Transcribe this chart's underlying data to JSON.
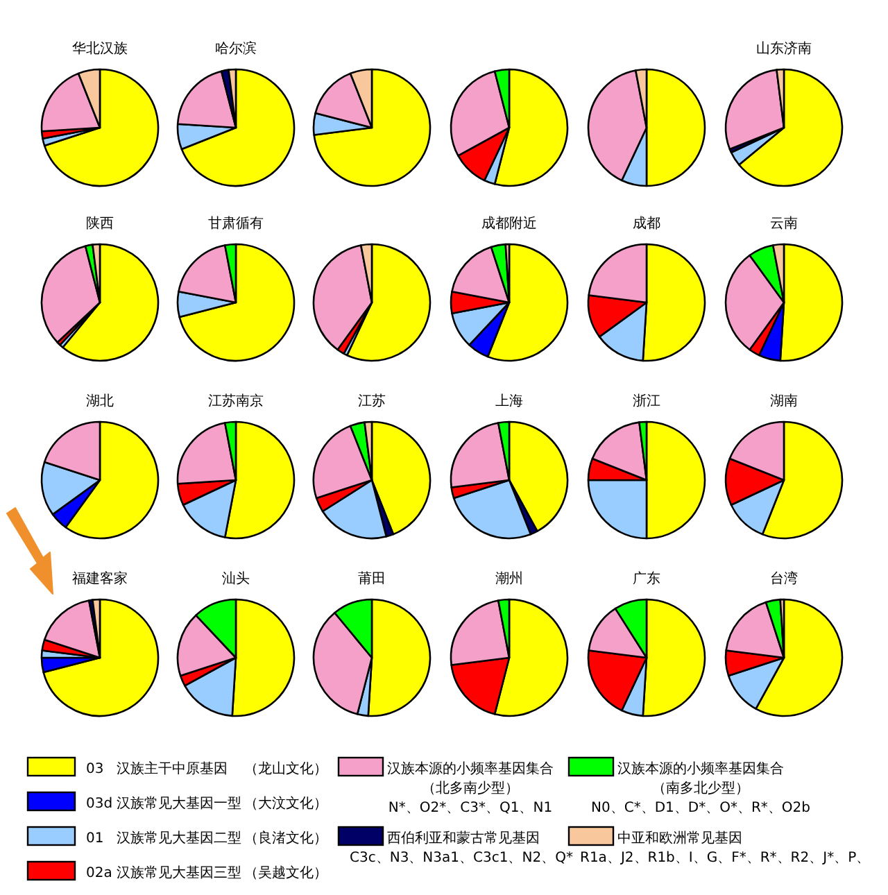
{
  "chart_data": [
    {
      "type": "pie",
      "title": "华北汉族",
      "categories": [
        null,
        null,
        null,
        null,
        null
      ],
      "values": [
        70,
        2,
        2,
        20,
        6
      ],
      "colors": [
        "#ffff00",
        "#99ccff",
        "#ff0000",
        "#f4a0c8",
        "#f8c89c"
      ]
    },
    {
      "type": "pie",
      "title": "哈尔滨",
      "categories": [
        null,
        null,
        null,
        null,
        null
      ],
      "values": [
        69,
        7,
        20,
        2,
        2
      ],
      "colors": [
        "#ffff00",
        "#99ccff",
        "#f4a0c8",
        "#000066",
        "#f8c89c"
      ]
    },
    {
      "type": "pie",
      "categories": [
        null,
        null,
        null,
        null
      ],
      "values": [
        73,
        6,
        15,
        6
      ],
      "colors": [
        "#ffff00",
        "#99ccff",
        "#f4a0c8",
        "#f8c89c"
      ]
    },
    {
      "type": "pie",
      "categories": [
        null,
        null,
        null,
        null,
        null
      ],
      "values": [
        54,
        3,
        10,
        29,
        4
      ],
      "colors": [
        "#ffff00",
        "#99ccff",
        "#ff0000",
        "#f4a0c8",
        "#00ff00"
      ]
    },
    {
      "type": "pie",
      "categories": [
        null,
        null,
        null,
        null
      ],
      "values": [
        50,
        7,
        40,
        3
      ],
      "colors": [
        "#ffff00",
        "#99ccff",
        "#f4a0c8",
        "#f8c89c"
      ]
    },
    {
      "type": "pie",
      "title": "山东济南",
      "categories": [
        null,
        null,
        null,
        null,
        null
      ],
      "values": [
        64,
        4,
        1,
        29,
        2
      ],
      "colors": [
        "#ffff00",
        "#99ccff",
        "#000066",
        "#f4a0c8",
        "#f8c89c"
      ]
    },
    {
      "type": "pie",
      "title": "陕西",
      "categories": [
        null,
        null,
        null,
        null,
        null,
        null
      ],
      "values": [
        61,
        1,
        1,
        33,
        2,
        2
      ],
      "colors": [
        "#ffff00",
        "#99ccff",
        "#ff0000",
        "#f4a0c8",
        "#00ff00",
        "#f8c89c"
      ]
    },
    {
      "type": "pie",
      "title": "甘肃循有",
      "categories": [
        null,
        null,
        null,
        null
      ],
      "values": [
        71,
        7,
        19,
        3
      ],
      "colors": [
        "#ffff00",
        "#99ccff",
        "#f4a0c8",
        "#00ff00"
      ]
    },
    {
      "type": "pie",
      "categories": [
        null,
        null,
        null,
        null,
        null
      ],
      "values": [
        57,
        1,
        2,
        37,
        3
      ],
      "colors": [
        "#ffff00",
        "#99ccff",
        "#ff0000",
        "#f4a0c8",
        "#f8c89c"
      ]
    },
    {
      "type": "pie",
      "title": "成都附近",
      "categories": [
        null,
        null,
        null,
        null,
        null,
        null,
        null
      ],
      "values": [
        56,
        6,
        10,
        6,
        17,
        4,
        1
      ],
      "colors": [
        "#ffff00",
        "#0000ff",
        "#99ccff",
        "#ff0000",
        "#f4a0c8",
        "#00ff00",
        "#f8c89c"
      ]
    },
    {
      "type": "pie",
      "title": "成都",
      "categories": [
        null,
        null,
        null,
        null
      ],
      "values": [
        51,
        14,
        12,
        23
      ],
      "colors": [
        "#ffff00",
        "#99ccff",
        "#ff0000",
        "#f4a0c8"
      ]
    },
    {
      "type": "pie",
      "title": "云南",
      "categories": [
        null,
        null,
        null,
        null,
        null,
        null
      ],
      "values": [
        51,
        6,
        3,
        30,
        7,
        3
      ],
      "colors": [
        "#ffff00",
        "#0000ff",
        "#ff0000",
        "#f4a0c8",
        "#00ff00",
        "#f8c89c"
      ]
    },
    {
      "type": "pie",
      "title": "湖北",
      "categories": [
        null,
        null,
        null,
        null
      ],
      "values": [
        60,
        5,
        15,
        20
      ],
      "colors": [
        "#ffff00",
        "#0000ff",
        "#99ccff",
        "#f4a0c8"
      ]
    },
    {
      "type": "pie",
      "title": "江苏南京",
      "categories": [
        null,
        null,
        null,
        null,
        null
      ],
      "values": [
        53,
        15,
        6,
        23,
        3
      ],
      "colors": [
        "#ffff00",
        "#99ccff",
        "#ff0000",
        "#f4a0c8",
        "#00ff00"
      ]
    },
    {
      "type": "pie",
      "title": "江苏",
      "categories": [
        null,
        null,
        null,
        null,
        null,
        null,
        null
      ],
      "values": [
        44,
        2,
        20,
        4,
        24,
        4,
        2
      ],
      "colors": [
        "#ffff00",
        "#000066",
        "#99ccff",
        "#ff0000",
        "#f4a0c8",
        "#00ff00",
        "#f8c89c"
      ]
    },
    {
      "type": "pie",
      "title": "上海",
      "categories": [
        null,
        null,
        null,
        null,
        null,
        null
      ],
      "values": [
        42,
        2,
        26,
        3,
        24,
        3
      ],
      "colors": [
        "#ffff00",
        "#000066",
        "#99ccff",
        "#ff0000",
        "#f4a0c8",
        "#00ff00"
      ]
    },
    {
      "type": "pie",
      "title": "浙江",
      "categories": [
        null,
        null,
        null,
        null,
        null
      ],
      "values": [
        50,
        25,
        6,
        17,
        2
      ],
      "colors": [
        "#ffff00",
        "#99ccff",
        "#ff0000",
        "#f4a0c8",
        "#00ff00"
      ]
    },
    {
      "type": "pie",
      "title": "湖南",
      "categories": [
        null,
        null,
        null,
        null
      ],
      "values": [
        56,
        12,
        13,
        19
      ],
      "colors": [
        "#ffff00",
        "#99ccff",
        "#ff0000",
        "#f4a0c8"
      ]
    },
    {
      "type": "pie",
      "title": "福建客家",
      "categories": [
        null,
        null,
        null,
        null,
        null,
        null,
        null
      ],
      "values": [
        71,
        4,
        2,
        3,
        17,
        1,
        2
      ],
      "colors": [
        "#ffff00",
        "#0000ff",
        "#99ccff",
        "#ff0000",
        "#f4a0c8",
        "#000066",
        "#f8c89c"
      ]
    },
    {
      "type": "pie",
      "title": "汕头",
      "categories": [
        null,
        null,
        null,
        null,
        null
      ],
      "values": [
        51,
        16,
        3,
        18,
        12
      ],
      "colors": [
        "#ffff00",
        "#99ccff",
        "#ff0000",
        "#f4a0c8",
        "#00ff00"
      ]
    },
    {
      "type": "pie",
      "title": "莆田",
      "categories": [
        null,
        null,
        null,
        null
      ],
      "values": [
        51,
        3,
        35,
        11
      ],
      "colors": [
        "#ffff00",
        "#99ccff",
        "#f4a0c8",
        "#00ff00"
      ]
    },
    {
      "type": "pie",
      "title": "潮州",
      "categories": [
        null,
        null,
        null,
        null
      ],
      "values": [
        54,
        19,
        24,
        3
      ],
      "colors": [
        "#ffff00",
        "#ff0000",
        "#f4a0c8",
        "#00ff00"
      ]
    },
    {
      "type": "pie",
      "title": "广东",
      "categories": [
        null,
        null,
        null,
        null,
        null
      ],
      "values": [
        51,
        6,
        20,
        14,
        9
      ],
      "colors": [
        "#ffff00",
        "#99ccff",
        "#ff0000",
        "#f4a0c8",
        "#00ff00"
      ]
    },
    {
      "type": "pie",
      "title": "台湾",
      "categories": [
        null,
        null,
        null,
        null,
        null,
        null
      ],
      "values": [
        58,
        12,
        7,
        18,
        4,
        1
      ],
      "colors": [
        "#ffff00",
        "#99ccff",
        "#ff0000",
        "#f4a0c8",
        "#00ff00",
        "#f8c89c"
      ]
    },
    {
      "type": "other",
      "colors": [
        "#ffff00",
        "#0000ff",
        "#99ccff",
        "#ff0000",
        "#f4a0c8",
        "#00ff00",
        "#000066",
        "#f8c89c"
      ],
      "annotations": [
        "03",
        "汉族主干中原基因",
        "（龙山文化）",
        "03d",
        "汉族常见大基因一型",
        "（大汶文化）",
        "01",
        "汉族常见大基因二型",
        "（良渚文化）",
        "02a",
        "汉族常见大基因三型",
        "（吴越文化）",
        "汉族本源的小频率基因集合",
        "（北多南少型）",
        "N*、O2*、C3*、Q1、N1",
        "汉族本源的小频率基因集合",
        "（南多北少型）",
        "N0、C*、D1、D*、O*、R*、O2b",
        "西伯利亚和蒙古常见基因",
        "C3c、N3、N3a1、C3c1、N2、Q*",
        "中亚和欧洲常见基因",
        "R1a、J2、R1b、I、G、F*、R*、R2、J*、P、"
      ]
    }
  ]
}
